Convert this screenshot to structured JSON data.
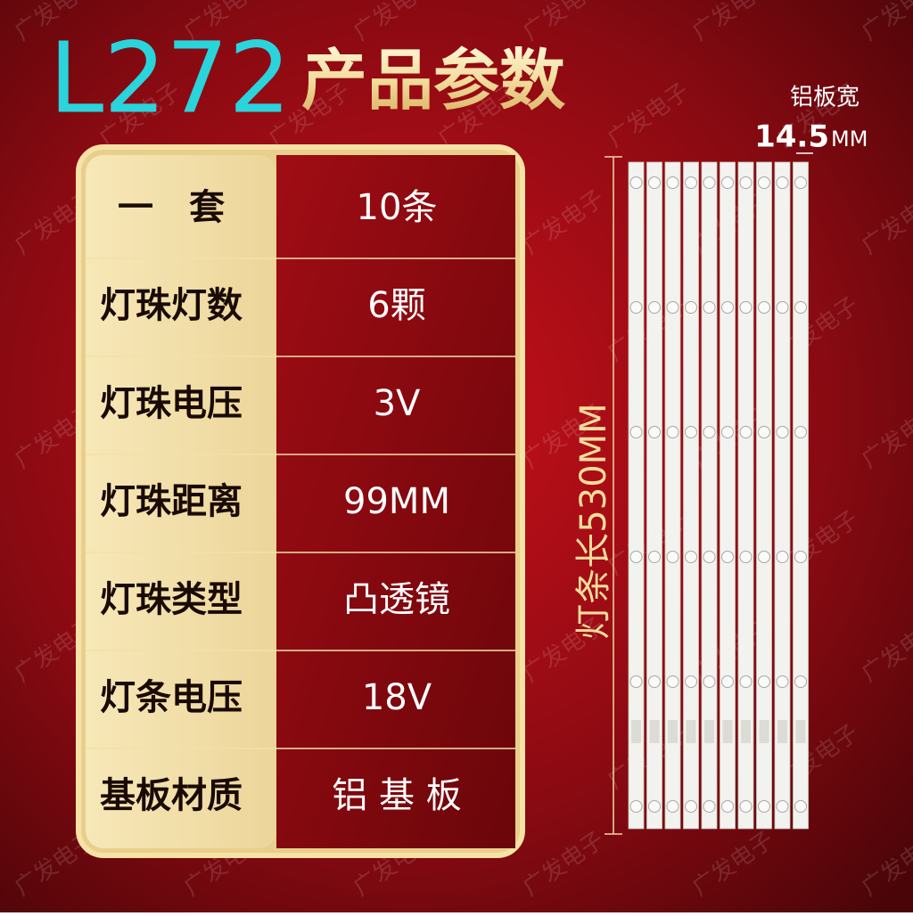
{
  "header": {
    "model": "L272",
    "title": "产品参数"
  },
  "table": {
    "rows": [
      [
        "一　套",
        "10条"
      ],
      [
        "灯珠灯数",
        "6颗"
      ],
      [
        "灯珠电压",
        "3V"
      ],
      [
        "灯珠距离",
        "99MM"
      ],
      [
        "灯珠类型",
        "凸透镜"
      ],
      [
        "灯条电压",
        "18V"
      ],
      [
        "基板材质",
        "铝 基 板"
      ]
    ]
  },
  "dimensions": {
    "width_label": "铝板宽",
    "width_value": "14.5",
    "width_unit": "MM",
    "length_label": "灯条长530MM"
  },
  "watermark": "广发电子"
}
